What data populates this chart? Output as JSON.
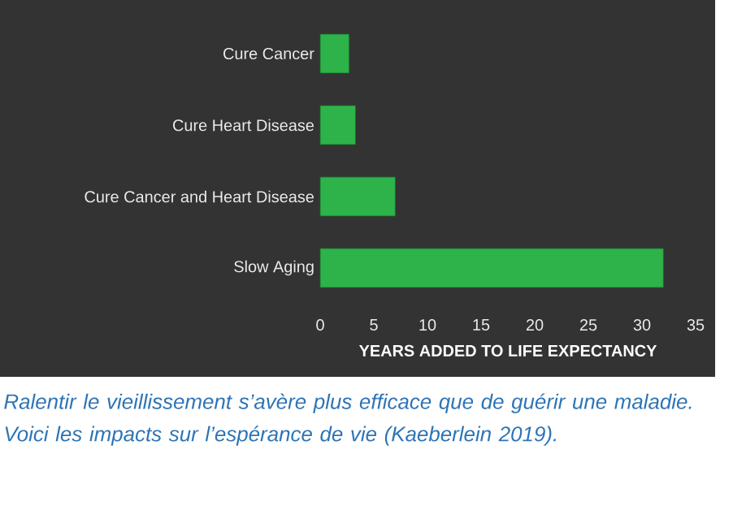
{
  "chart_data": {
    "type": "bar",
    "orientation": "horizontal",
    "categories": [
      "Cure Cancer",
      "Cure Heart Disease",
      "Cure Cancer and Heart Disease",
      "Slow Aging"
    ],
    "values": [
      2.7,
      3.3,
      7,
      32
    ],
    "color": "#2db34a",
    "xlabel": "YEARS ADDED TO LIFE EXPECTANCY",
    "xlim": [
      0,
      35
    ],
    "xticks": [
      0,
      5,
      10,
      15,
      20,
      25,
      30,
      35
    ],
    "annotations": [
      "Ralentir le vieillissement s’avère plus efficace que de guérir une maladie. Voici les impacts sur l’espérance de vie (Kaeberlein 2019)."
    ]
  }
}
